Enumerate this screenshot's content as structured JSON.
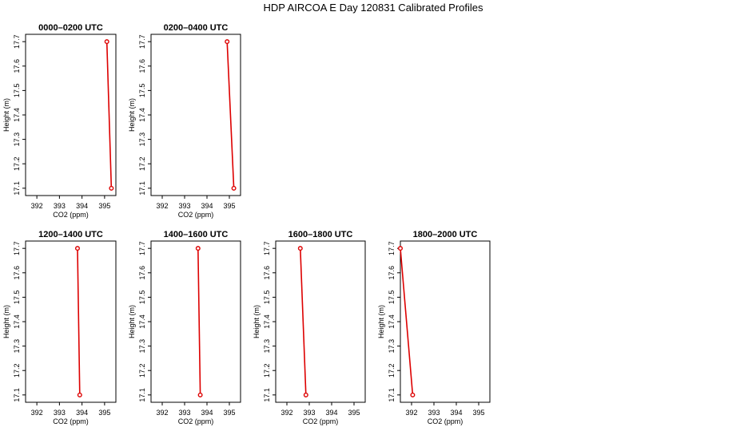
{
  "figure": {
    "title": "HDP AIRCOA E  Day 120831  Calibrated Profiles",
    "colors": {
      "series": "#dd0000",
      "axis": "#000000"
    }
  },
  "chart_data": [
    {
      "type": "line",
      "title": "0000–0200 UTC",
      "xlabel": "CO2 (ppm)",
      "ylabel": "Height (m)",
      "xlim": [
        391.5,
        395.5
      ],
      "ylim": [
        17.07,
        17.73
      ],
      "xticks": [
        392,
        393,
        394,
        395
      ],
      "yticks": [
        17.1,
        17.2,
        17.3,
        17.4,
        17.5,
        17.6,
        17.7
      ],
      "x": [
        395.1,
        395.3
      ],
      "y": [
        17.7,
        17.1
      ],
      "grid": false
    },
    {
      "type": "line",
      "title": "0200–0400 UTC",
      "xlabel": "CO2 (ppm)",
      "ylabel": "Height (m)",
      "xlim": [
        391.5,
        395.5
      ],
      "ylim": [
        17.07,
        17.73
      ],
      "xticks": [
        392,
        393,
        394,
        395
      ],
      "yticks": [
        17.1,
        17.2,
        17.3,
        17.4,
        17.5,
        17.6,
        17.7
      ],
      "x": [
        394.9,
        395.2
      ],
      "y": [
        17.7,
        17.1
      ],
      "grid": false
    },
    {
      "type": "line",
      "title": "1200–1400 UTC",
      "xlabel": "CO2 (ppm)",
      "ylabel": "Height (m)",
      "xlim": [
        391.5,
        395.5
      ],
      "ylim": [
        17.07,
        17.73
      ],
      "xticks": [
        392,
        393,
        394,
        395
      ],
      "yticks": [
        17.1,
        17.2,
        17.3,
        17.4,
        17.5,
        17.6,
        17.7
      ],
      "x": [
        393.8,
        393.9
      ],
      "y": [
        17.7,
        17.1
      ],
      "grid": false
    },
    {
      "type": "line",
      "title": "1400–1600 UTC",
      "xlabel": "CO2 (ppm)",
      "ylabel": "Height (m)",
      "xlim": [
        391.5,
        395.5
      ],
      "ylim": [
        17.07,
        17.73
      ],
      "xticks": [
        392,
        393,
        394,
        395
      ],
      "yticks": [
        17.1,
        17.2,
        17.3,
        17.4,
        17.5,
        17.6,
        17.7
      ],
      "x": [
        393.6,
        393.7
      ],
      "y": [
        17.7,
        17.1
      ],
      "grid": false
    },
    {
      "type": "line",
      "title": "1600–1800 UTC",
      "xlabel": "CO2 (ppm)",
      "ylabel": "Height (m)",
      "xlim": [
        391.5,
        395.5
      ],
      "ylim": [
        17.07,
        17.73
      ],
      "xticks": [
        392,
        393,
        394,
        395
      ],
      "yticks": [
        17.1,
        17.2,
        17.3,
        17.4,
        17.5,
        17.6,
        17.7
      ],
      "x": [
        392.6,
        392.85
      ],
      "y": [
        17.7,
        17.1
      ],
      "grid": false
    },
    {
      "type": "line",
      "title": "1800–2000 UTC",
      "xlabel": "CO2 (ppm)",
      "ylabel": "Height (m)",
      "xlim": [
        391.5,
        395.5
      ],
      "ylim": [
        17.07,
        17.73
      ],
      "xticks": [
        392,
        393,
        394,
        395
      ],
      "yticks": [
        17.1,
        17.2,
        17.3,
        17.4,
        17.5,
        17.6,
        17.7
      ],
      "x": [
        391.5,
        392.05
      ],
      "y": [
        17.7,
        17.1
      ],
      "grid": false
    }
  ]
}
